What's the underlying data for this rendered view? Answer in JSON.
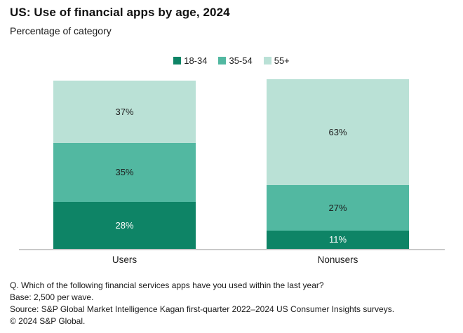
{
  "header": {
    "title": "US: Use of financial apps by age, 2024",
    "subtitle": "Percentage of category"
  },
  "legend": [
    {
      "label": "18-34",
      "color": "#0e8466"
    },
    {
      "label": "35-54",
      "color": "#52b8a1"
    },
    {
      "label": "55+",
      "color": "#bae1d6"
    }
  ],
  "chart_data": {
    "type": "bar",
    "stacked": true,
    "title": "US: Use of financial apps by age, 2024",
    "subtitle": "Percentage of category",
    "categories": [
      "Users",
      "Nonusers"
    ],
    "series": [
      {
        "name": "18-34",
        "color": "#0e8466",
        "label_color": "#ffffff",
        "values": [
          28,
          11
        ]
      },
      {
        "name": "35-54",
        "color": "#52b8a1",
        "label_color": "#1d1d1d",
        "values": [
          35,
          27
        ]
      },
      {
        "name": "55+",
        "color": "#bae1d6",
        "label_color": "#1d1d1d",
        "values": [
          37,
          63
        ]
      }
    ],
    "value_suffix": "%",
    "ylim": [
      0,
      100
    ],
    "grid": false,
    "legend_position": "top-center",
    "axis_line_color": "#c9c9c9"
  },
  "footer": {
    "lines": [
      "Q. Which of the following financial services apps have you used within the last year?",
      "Base: 2,500 per wave.",
      "Source: S&P Global Market Intelligence Kagan first-quarter 2022–2024 US Consumer Insights surveys.",
      "© 2024 S&P Global."
    ]
  }
}
